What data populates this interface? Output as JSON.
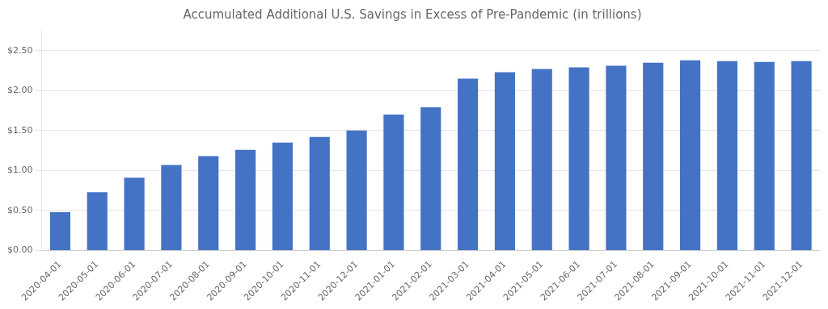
{
  "chart_data": {
    "type": "bar",
    "title": "Accumulated Additional U.S. Savings in Excess of Pre-Pandemic (in trillions)",
    "categories": [
      "2020-04-01",
      "2020-05-01",
      "2020-06-01",
      "2020-07-01",
      "2020-08-01",
      "2020-09-01",
      "2020-10-01",
      "2020-11-01",
      "2020-12-01",
      "2021-01-01",
      "2021-02-01",
      "2021-03-01",
      "2021-04-01",
      "2021-05-01",
      "2021-06-01",
      "2021-07-01",
      "2021-08-01",
      "2021-09-01",
      "2021-10-01",
      "2021-11-01",
      "2021-12-01"
    ],
    "values": [
      0.48,
      0.73,
      0.91,
      1.07,
      1.18,
      1.26,
      1.35,
      1.42,
      1.5,
      1.7,
      1.79,
      2.15,
      2.23,
      2.27,
      2.29,
      2.31,
      2.35,
      2.38,
      2.37,
      2.36,
      2.37
    ],
    "color": "#4472C4",
    "ylim": [
      0,
      2.75
    ],
    "yticks": [
      {
        "value": 0.0,
        "label": "$0.00"
      },
      {
        "value": 0.5,
        "label": "$0.50"
      },
      {
        "value": 1.0,
        "label": "$1.00"
      },
      {
        "value": 1.5,
        "label": "$1.50"
      },
      {
        "value": 2.0,
        "label": "$2.00"
      },
      {
        "value": 2.5,
        "label": "$2.50"
      }
    ],
    "grid": true
  }
}
